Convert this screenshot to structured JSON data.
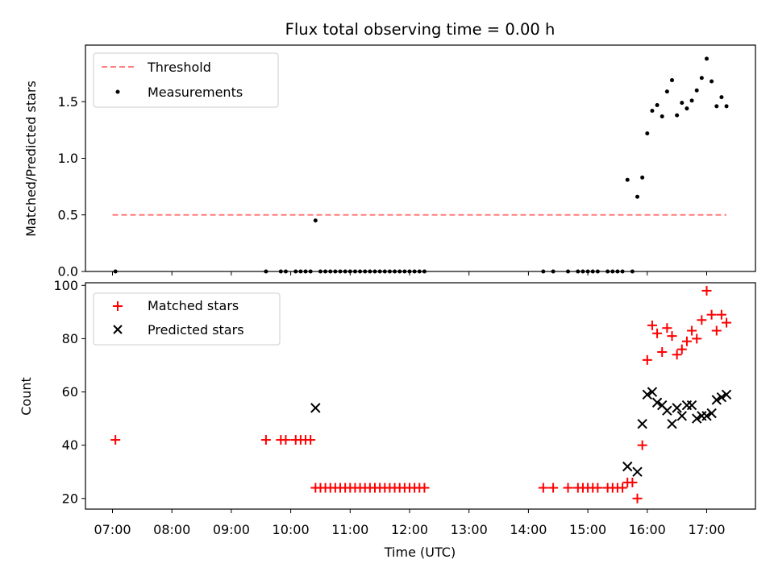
{
  "chart_data": [
    {
      "type": "scatter",
      "title": "Flux total observing time = 0.00 h",
      "ylabel": "Matched/Predicted stars",
      "xlabel": "",
      "ylim": [
        0,
        2.0
      ],
      "yticks": [
        0.0,
        0.5,
        1.0,
        1.5
      ],
      "ytick_labels": [
        "0.0",
        "0.5",
        "1.0",
        "1.5"
      ],
      "legend_position": "upper-left",
      "threshold": {
        "name": "Threshold",
        "value": 0.5,
        "x_range": [
          "07:00",
          "17:20"
        ],
        "color": "#ff7f7f",
        "style": "dashed"
      },
      "series": [
        {
          "name": "Measurements",
          "color": "#000000",
          "marker": "dot",
          "points": [
            [
              "07:03",
              0.0
            ],
            [
              "09:35",
              0.0
            ],
            [
              "09:50",
              0.0
            ],
            [
              "09:55",
              0.0
            ],
            [
              "10:05",
              0.0
            ],
            [
              "10:10",
              0.0
            ],
            [
              "10:15",
              0.0
            ],
            [
              "10:20",
              0.0
            ],
            [
              "10:25",
              0.45
            ],
            [
              "10:30",
              0.0
            ],
            [
              "10:35",
              0.0
            ],
            [
              "10:40",
              0.0
            ],
            [
              "10:45",
              0.0
            ],
            [
              "10:50",
              0.0
            ],
            [
              "10:55",
              0.0
            ],
            [
              "11:00",
              0.0
            ],
            [
              "11:05",
              0.0
            ],
            [
              "11:10",
              0.0
            ],
            [
              "11:15",
              0.0
            ],
            [
              "11:20",
              0.0
            ],
            [
              "11:25",
              0.0
            ],
            [
              "11:30",
              0.0
            ],
            [
              "11:35",
              0.0
            ],
            [
              "11:40",
              0.0
            ],
            [
              "11:45",
              0.0
            ],
            [
              "11:50",
              0.0
            ],
            [
              "11:55",
              0.0
            ],
            [
              "12:00",
              0.0
            ],
            [
              "12:05",
              0.0
            ],
            [
              "12:10",
              0.0
            ],
            [
              "12:15",
              0.0
            ],
            [
              "14:15",
              0.0
            ],
            [
              "14:25",
              0.0
            ],
            [
              "14:40",
              0.0
            ],
            [
              "14:50",
              0.0
            ],
            [
              "14:55",
              0.0
            ],
            [
              "15:00",
              0.0
            ],
            [
              "15:05",
              0.0
            ],
            [
              "15:10",
              0.0
            ],
            [
              "15:20",
              0.0
            ],
            [
              "15:25",
              0.0
            ],
            [
              "15:30",
              0.0
            ],
            [
              "15:35",
              0.0
            ],
            [
              "15:40",
              0.81
            ],
            [
              "15:45",
              0.0
            ],
            [
              "15:50",
              0.66
            ],
            [
              "15:55",
              0.83
            ],
            [
              "16:00",
              1.22
            ],
            [
              "16:05",
              1.42
            ],
            [
              "16:10",
              1.47
            ],
            [
              "16:15",
              1.37
            ],
            [
              "16:20",
              1.59
            ],
            [
              "16:25",
              1.69
            ],
            [
              "16:30",
              1.38
            ],
            [
              "16:35",
              1.49
            ],
            [
              "16:40",
              1.44
            ],
            [
              "16:45",
              1.51
            ],
            [
              "16:50",
              1.6
            ],
            [
              "16:55",
              1.71
            ],
            [
              "17:00",
              1.88
            ],
            [
              "17:05",
              1.68
            ],
            [
              "17:10",
              1.46
            ],
            [
              "17:15",
              1.54
            ],
            [
              "17:20",
              1.46
            ]
          ]
        }
      ]
    },
    {
      "type": "scatter",
      "title": "",
      "ylabel": "Count",
      "xlabel": "Time (UTC)",
      "ylim": [
        16,
        101
      ],
      "yticks": [
        20,
        40,
        60,
        80,
        100
      ],
      "ytick_labels": [
        "20",
        "40",
        "60",
        "80",
        "100"
      ],
      "x_categories": [
        "07:00",
        "08:00",
        "09:00",
        "10:00",
        "11:00",
        "12:00",
        "13:00",
        "14:00",
        "15:00",
        "16:00",
        "17:00"
      ],
      "legend_position": "upper-left",
      "series": [
        {
          "name": "Matched stars",
          "color": "#ff0000",
          "marker": "plus",
          "points": [
            [
              "07:03",
              42
            ],
            [
              "09:35",
              42
            ],
            [
              "09:50",
              42
            ],
            [
              "09:55",
              42
            ],
            [
              "10:05",
              42
            ],
            [
              "10:10",
              42
            ],
            [
              "10:15",
              42
            ],
            [
              "10:20",
              42
            ],
            [
              "10:25",
              24
            ],
            [
              "10:30",
              24
            ],
            [
              "10:35",
              24
            ],
            [
              "10:40",
              24
            ],
            [
              "10:45",
              24
            ],
            [
              "10:50",
              24
            ],
            [
              "10:55",
              24
            ],
            [
              "11:00",
              24
            ],
            [
              "11:05",
              24
            ],
            [
              "11:10",
              24
            ],
            [
              "11:15",
              24
            ],
            [
              "11:20",
              24
            ],
            [
              "11:25",
              24
            ],
            [
              "11:30",
              24
            ],
            [
              "11:35",
              24
            ],
            [
              "11:40",
              24
            ],
            [
              "11:45",
              24
            ],
            [
              "11:50",
              24
            ],
            [
              "11:55",
              24
            ],
            [
              "12:00",
              24
            ],
            [
              "12:05",
              24
            ],
            [
              "12:10",
              24
            ],
            [
              "12:15",
              24
            ],
            [
              "14:15",
              24
            ],
            [
              "14:25",
              24
            ],
            [
              "14:40",
              24
            ],
            [
              "14:50",
              24
            ],
            [
              "14:55",
              24
            ],
            [
              "15:00",
              24
            ],
            [
              "15:05",
              24
            ],
            [
              "15:10",
              24
            ],
            [
              "15:20",
              24
            ],
            [
              "15:25",
              24
            ],
            [
              "15:30",
              24
            ],
            [
              "15:35",
              24
            ],
            [
              "15:40",
              26
            ],
            [
              "15:45",
              26
            ],
            [
              "15:50",
              20
            ],
            [
              "15:55",
              40
            ],
            [
              "16:00",
              72
            ],
            [
              "16:05",
              85
            ],
            [
              "16:10",
              82
            ],
            [
              "16:15",
              75
            ],
            [
              "16:20",
              84
            ],
            [
              "16:25",
              81
            ],
            [
              "16:30",
              74
            ],
            [
              "16:35",
              76
            ],
            [
              "16:40",
              79
            ],
            [
              "16:45",
              83
            ],
            [
              "16:50",
              80
            ],
            [
              "16:55",
              87
            ],
            [
              "17:00",
              98
            ],
            [
              "17:05",
              89
            ],
            [
              "17:10",
              83
            ],
            [
              "17:15",
              89
            ],
            [
              "17:20",
              86
            ]
          ]
        },
        {
          "name": "Predicted stars",
          "color": "#000000",
          "marker": "x",
          "points": [
            [
              "10:25",
              54
            ],
            [
              "15:40",
              32
            ],
            [
              "15:50",
              30
            ],
            [
              "15:55",
              48
            ],
            [
              "16:00",
              59
            ],
            [
              "16:05",
              60
            ],
            [
              "16:10",
              56
            ],
            [
              "16:15",
              55
            ],
            [
              "16:20",
              53
            ],
            [
              "16:25",
              48
            ],
            [
              "16:30",
              54
            ],
            [
              "16:35",
              51
            ],
            [
              "16:40",
              55
            ],
            [
              "16:45",
              55
            ],
            [
              "16:50",
              50
            ],
            [
              "16:55",
              51
            ],
            [
              "17:00",
              51
            ],
            [
              "17:05",
              52
            ],
            [
              "17:10",
              57
            ],
            [
              "17:15",
              58
            ],
            [
              "17:20",
              59
            ]
          ]
        }
      ]
    }
  ]
}
